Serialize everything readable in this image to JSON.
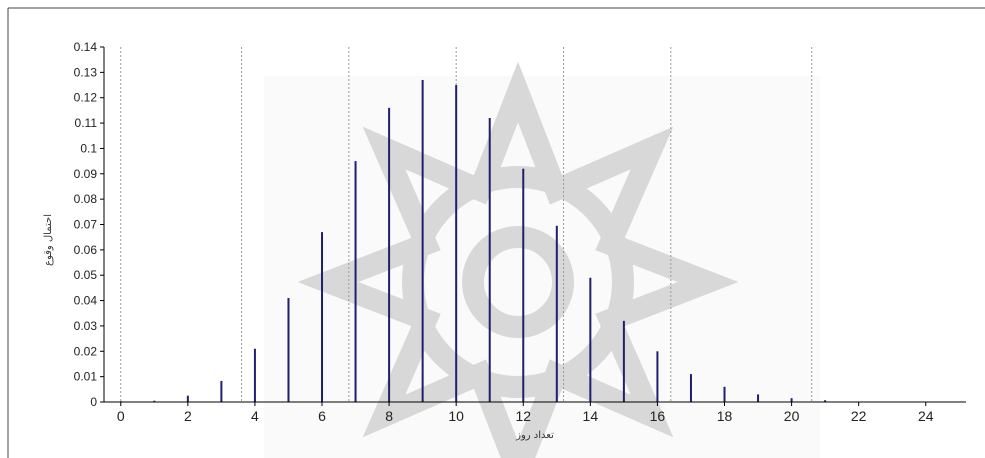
{
  "chart_data": {
    "type": "bar",
    "title": "",
    "xlabel": "تعداد روز",
    "ylabel": "احتمال وقوع",
    "xlim": [
      -0.5,
      25.2
    ],
    "ylim": [
      0,
      0.14
    ],
    "x_ticks": [
      0,
      2,
      4,
      6,
      8,
      10,
      12,
      14,
      16,
      18,
      20,
      22,
      24
    ],
    "y_ticks": [
      "0",
      "0.01",
      "0.02",
      "0.03",
      "0.04",
      "0.05",
      "0.06",
      "0.07",
      "0.08",
      "0.09",
      "0.1",
      "0.11",
      "0.12",
      "0.13",
      "0.14"
    ],
    "vertical_gridlines_x": [
      0,
      3.6,
      6.8,
      10,
      13.2,
      16.4,
      20.6
    ],
    "grid": "vertical dotted",
    "bar_color": "#1f1f6e",
    "x": [
      0,
      1,
      2,
      3,
      4,
      5,
      6,
      7,
      8,
      9,
      10,
      11,
      12,
      13,
      14,
      15,
      16,
      17,
      18,
      19,
      20,
      21
    ],
    "values": [
      0.0003,
      0.0005,
      0.0025,
      0.0083,
      0.021,
      0.041,
      0.067,
      0.095,
      0.116,
      0.127,
      0.125,
      0.112,
      0.092,
      0.0695,
      0.049,
      0.032,
      0.02,
      0.011,
      0.006,
      0.003,
      0.0015,
      0.0007
    ]
  }
}
